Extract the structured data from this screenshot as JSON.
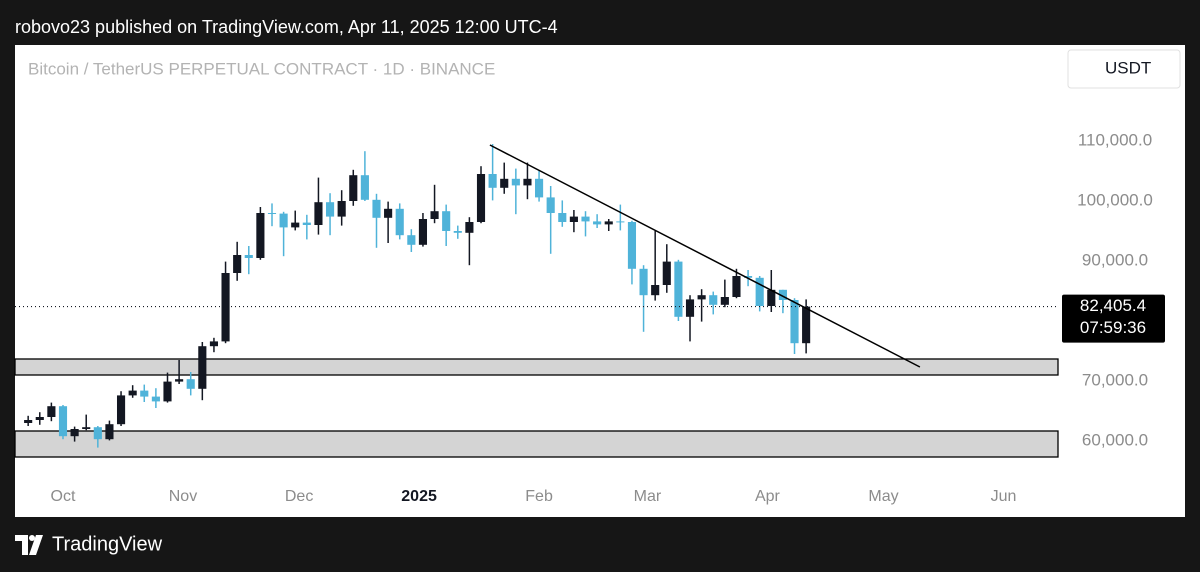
{
  "attribution": "robovo23 published on TradingView.com, Apr 11, 2025 12:00 UTC-4",
  "brand": "TradingView",
  "currency_button": "USDT",
  "chart_data": {
    "type": "candlestick",
    "title": "Bitcoin / TetherUS PERPETUAL CONTRACT · 1D · BINANCE",
    "up_color": "#131722",
    "down_color": "#4fb3d9",
    "xlim": [
      -12.4,
      256.3
    ],
    "xticks": [
      {
        "value": 0,
        "label": "Oct"
      },
      {
        "value": 31,
        "label": "Nov"
      },
      {
        "value": 61,
        "label": "Dec"
      },
      {
        "value": 92,
        "label": "2025",
        "bold": true
      },
      {
        "value": 123,
        "label": "Feb"
      },
      {
        "value": 151,
        "label": "Mar"
      },
      {
        "value": 182,
        "label": "Apr"
      },
      {
        "value": 212,
        "label": "May"
      },
      {
        "value": 243,
        "label": "Jun"
      }
    ],
    "ylim": [
      54000,
      126000
    ],
    "yticks": [
      {
        "value": 110000,
        "label": "110,000.0"
      },
      {
        "value": 100000,
        "label": "100,000.0"
      },
      {
        "value": 90000,
        "label": "90,000.0"
      },
      {
        "value": 70000,
        "label": "70,000.0"
      },
      {
        "value": 60000,
        "label": "60,000.0"
      }
    ],
    "x": [
      -9,
      -6,
      -3,
      0,
      3,
      6,
      9,
      12,
      15,
      18,
      21,
      24,
      27,
      30,
      33,
      36,
      39,
      42,
      45,
      48,
      51,
      54,
      57,
      60,
      63,
      66,
      69,
      72,
      75,
      78,
      81,
      84,
      87,
      90,
      93,
      96,
      99,
      102,
      105,
      108,
      111,
      114,
      117,
      120,
      123,
      126,
      129,
      132,
      135,
      138,
      141,
      144,
      147,
      150,
      153,
      156,
      159,
      162,
      165,
      168,
      171,
      174,
      177,
      180,
      183,
      186,
      189,
      192
    ],
    "open": [
      63000,
      63500,
      64000,
      65800,
      60800,
      62000,
      62300,
      60300,
      62800,
      67600,
      68400,
      67400,
      66600,
      69900,
      70300,
      68700,
      75800,
      76600,
      88000,
      91000,
      90500,
      98000,
      97900,
      95600,
      96400,
      96000,
      99800,
      97400,
      100000,
      104300,
      100200,
      97200,
      98700,
      94300,
      92700,
      97000,
      98300,
      95000,
      94700,
      96500,
      104500,
      102200,
      103700,
      102600,
      103700,
      100600,
      98000,
      96500,
      97400,
      96600,
      96100,
      96600,
      96500,
      88700,
      84300,
      86000,
      89900,
      80700,
      83600,
      84300,
      82700,
      84000,
      87500,
      87200,
      82500,
      85200,
      83500,
      76300
    ],
    "high": [
      64200,
      64800,
      66400,
      66000,
      62400,
      64400,
      62500,
      63400,
      68300,
      69300,
      69400,
      68800,
      71400,
      73500,
      71500,
      76500,
      77200,
      89900,
      93200,
      92500,
      99000,
      99600,
      98200,
      98400,
      97700,
      103900,
      101300,
      101800,
      105200,
      108300,
      101200,
      99900,
      99600,
      95300,
      98000,
      102700,
      99400,
      95900,
      97300,
      105800,
      109500,
      106400,
      105400,
      106400,
      105000,
      102500,
      100100,
      98500,
      98300,
      97800,
      97000,
      99400,
      96700,
      89300,
      95000,
      92800,
      90200,
      84300,
      85300,
      84900,
      86900,
      88700,
      88500,
      87500,
      88500,
      85200,
      83800,
      83600
    ],
    "low": [
      62500,
      62700,
      63300,
      60300,
      59900,
      61800,
      58900,
      60100,
      62500,
      67200,
      66500,
      65500,
      66400,
      69500,
      67600,
      66800,
      74800,
      76300,
      86700,
      87800,
      90200,
      95800,
      90800,
      95100,
      93600,
      94400,
      94300,
      95900,
      99200,
      100000,
      92200,
      93000,
      93600,
      91500,
      92400,
      96300,
      92500,
      93700,
      89300,
      96300,
      100100,
      101200,
      97800,
      100300,
      99900,
      91200,
      95700,
      94800,
      94100,
      95500,
      95000,
      95100,
      86100,
      78200,
      83400,
      84700,
      80000,
      76600,
      79900,
      81100,
      82300,
      83800,
      85800,
      81600,
      81500,
      81300,
      74500,
      74600
    ],
    "close": [
      63500,
      64000,
      65800,
      60800,
      62000,
      62300,
      60300,
      62800,
      67600,
      68400,
      67400,
      66600,
      69900,
      70300,
      68700,
      75800,
      76600,
      88000,
      91000,
      90500,
      98000,
      97900,
      95600,
      96400,
      96000,
      99800,
      97400,
      100000,
      104300,
      100200,
      97200,
      98700,
      94300,
      92700,
      97000,
      98300,
      95000,
      94700,
      96500,
      104500,
      102200,
      103700,
      102600,
      103700,
      100600,
      98000,
      96500,
      97400,
      96600,
      96100,
      96600,
      96500,
      88700,
      84300,
      86000,
      89900,
      80700,
      83600,
      84300,
      82700,
      84000,
      87500,
      87200,
      82500,
      85200,
      83500,
      76300,
      82400
    ],
    "trendline": {
      "x": [
        110.3,
        221.4
      ],
      "y": [
        109333,
        72333
      ]
    },
    "zones": [
      {
        "top": 73667,
        "bottom": 71000
      },
      {
        "top": 61667,
        "bottom": 57333
      }
    ],
    "last_price": {
      "value": 82405.4,
      "label": "82,405.4"
    },
    "countdown": "07:59:36"
  }
}
